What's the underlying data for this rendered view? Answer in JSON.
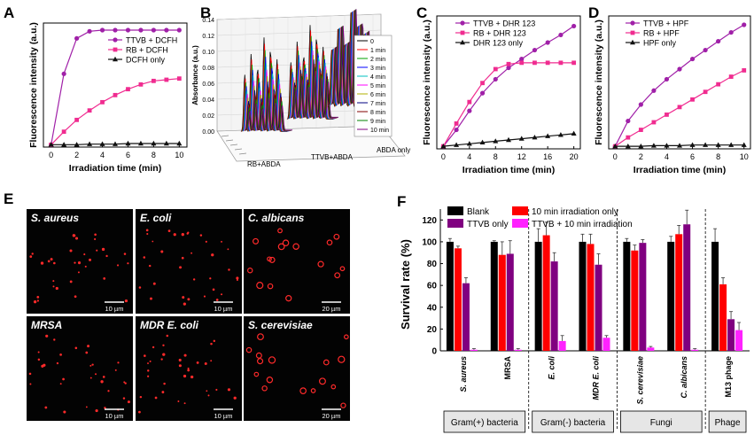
{
  "colors": {
    "purple": "#a020a8",
    "pink": "#f02c90",
    "black": "#111111",
    "magenta_bar": "#ff22ff",
    "red_bar": "#ff0000",
    "violet_bar": "#800080",
    "micro_bg": "#030303",
    "micro_dot": "#ff2a2a"
  },
  "panel_labels": {
    "A": "A",
    "B": "B",
    "C": "C",
    "D": "D",
    "E": "E",
    "F": "F"
  },
  "chart_data": [
    {
      "id": "A",
      "type": "line",
      "xlabel": "Irradiation time (min)",
      "ylabel": "Fluorescence intensity (a.u.)",
      "xlim": [
        -0.6,
        10.6
      ],
      "ylim": [
        0,
        1.05
      ],
      "xticks": [
        0,
        2,
        4,
        6,
        8,
        10
      ],
      "legend": "top-right",
      "series": [
        {
          "name": "TTVB + DCFH",
          "color": "#a020a8",
          "marker": "circle",
          "x": [
            0,
            1,
            2,
            3,
            4,
            5,
            6,
            7,
            8,
            9,
            10
          ],
          "y": [
            0.02,
            0.62,
            0.92,
            0.98,
            0.99,
            0.99,
            0.99,
            0.99,
            0.99,
            0.99,
            0.99
          ]
        },
        {
          "name": "RB + DCFH",
          "color": "#f02c90",
          "marker": "square",
          "x": [
            0,
            1,
            2,
            3,
            4,
            5,
            6,
            7,
            8,
            9,
            10
          ],
          "y": [
            0.02,
            0.13,
            0.23,
            0.31,
            0.38,
            0.44,
            0.49,
            0.53,
            0.56,
            0.57,
            0.58
          ]
        },
        {
          "name": "DCFH only",
          "color": "#111111",
          "marker": "triangle",
          "x": [
            0,
            1,
            2,
            3,
            4,
            5,
            6,
            7,
            8,
            9,
            10
          ],
          "y": [
            0.02,
            0.02,
            0.02,
            0.025,
            0.025,
            0.025,
            0.03,
            0.03,
            0.03,
            0.03,
            0.03
          ]
        }
      ]
    },
    {
      "id": "B",
      "type": "line",
      "ylabel": "Absorbance (a.u.)",
      "yticks": [
        "0.00",
        "0.02",
        "0.04",
        "0.06",
        "0.08",
        "0.10",
        "0.12",
        "0.14"
      ],
      "legend_entries": [
        "0",
        "1 min",
        "2 min",
        "3 min",
        "4 min",
        "5 min",
        "6 min",
        "7 min",
        "8 min",
        "9 min",
        "10 min"
      ],
      "series_colors": [
        "#000000",
        "#ff0000",
        "#00a000",
        "#0000ff",
        "#00c0c0",
        "#ff00ff",
        "#b0b000",
        "#000080",
        "#800000",
        "#008000",
        "#800080"
      ],
      "group_labels": [
        "RB+ABDA",
        "TTVB+ABDA",
        "ABDA only"
      ],
      "peak_decay_RB+ABDA": [
        1.0,
        0.93,
        0.86,
        0.79,
        0.72,
        0.65,
        0.58,
        0.52,
        0.46,
        0.4,
        0.34
      ],
      "peak_decay_TTVB+ABDA": [
        1.0,
        0.94,
        0.88,
        0.82,
        0.77,
        0.72,
        0.67,
        0.62,
        0.57,
        0.53,
        0.49
      ],
      "peak_decay_ABDA_only": [
        1.0,
        1.0,
        1.0,
        1.0,
        1.0,
        1.0,
        1.0,
        1.0,
        1.0,
        1.0,
        1.0
      ]
    },
    {
      "id": "C",
      "type": "line",
      "xlabel": "Irradiation time (min)",
      "ylabel": "Fluorescence intensity (a.u.)",
      "xlim": [
        -1.0,
        21.0
      ],
      "ylim": [
        0,
        1.05
      ],
      "xticks": [
        0,
        4,
        8,
        12,
        16,
        20
      ],
      "legend": "top-left",
      "series": [
        {
          "name": "TTVB + DHR 123",
          "color": "#a020a8",
          "marker": "circle",
          "x": [
            0,
            2,
            4,
            6,
            8,
            10,
            12,
            14,
            16,
            18,
            20
          ],
          "y": [
            0.02,
            0.15,
            0.3,
            0.44,
            0.55,
            0.64,
            0.71,
            0.78,
            0.84,
            0.9,
            0.97
          ]
        },
        {
          "name": "RB + DHR 123",
          "color": "#f02c90",
          "marker": "square",
          "x": [
            0,
            2,
            4,
            6,
            8,
            10,
            12,
            14,
            16,
            18,
            20
          ],
          "y": [
            0.02,
            0.2,
            0.37,
            0.52,
            0.63,
            0.67,
            0.68,
            0.68,
            0.68,
            0.68,
            0.68
          ]
        },
        {
          "name": "DHR 123 only",
          "color": "#111111",
          "marker": "triangle",
          "x": [
            0,
            2,
            4,
            6,
            8,
            10,
            12,
            14,
            16,
            18,
            20
          ],
          "y": [
            0.02,
            0.03,
            0.04,
            0.05,
            0.06,
            0.07,
            0.08,
            0.09,
            0.1,
            0.11,
            0.12
          ]
        }
      ]
    },
    {
      "id": "D",
      "type": "line",
      "xlabel": "Irradiation time (min)",
      "ylabel": "Fluorescence intensity (a.u.)",
      "xlim": [
        -0.5,
        10.5
      ],
      "ylim": [
        0,
        1.05
      ],
      "xticks": [
        0,
        2,
        4,
        6,
        8,
        10
      ],
      "legend": "top-left",
      "series": [
        {
          "name": "TTVB + HPF",
          "color": "#a020a8",
          "marker": "circle",
          "x": [
            0,
            1,
            2,
            3,
            4,
            5,
            6,
            7,
            8,
            9,
            10
          ],
          "y": [
            0.02,
            0.22,
            0.35,
            0.46,
            0.55,
            0.63,
            0.71,
            0.78,
            0.85,
            0.92,
            0.98
          ]
        },
        {
          "name": "RB + HPF",
          "color": "#f02c90",
          "marker": "square",
          "x": [
            0,
            1,
            2,
            3,
            4,
            5,
            6,
            7,
            8,
            9,
            10
          ],
          "y": [
            0.02,
            0.09,
            0.15,
            0.21,
            0.27,
            0.33,
            0.39,
            0.45,
            0.51,
            0.57,
            0.62
          ]
        },
        {
          "name": "HPF only",
          "color": "#111111",
          "marker": "triangle",
          "x": [
            0,
            1,
            2,
            3,
            4,
            5,
            6,
            7,
            8,
            9,
            10
          ],
          "y": [
            0.02,
            0.02,
            0.02,
            0.025,
            0.025,
            0.025,
            0.03,
            0.03,
            0.03,
            0.03,
            0.03
          ]
        }
      ]
    },
    {
      "id": "F",
      "type": "bar",
      "ylabel": "Survival rate (%)",
      "ylim": [
        0,
        130
      ],
      "yticks": [
        0,
        20,
        40,
        60,
        80,
        100,
        120
      ],
      "categories": [
        "S. aureus",
        "MRSA",
        "E. coli",
        "MDR E. coli",
        "S. cerevisiae",
        "C. albicans",
        "M13 phage"
      ],
      "italic_categories": [
        "S. aureus",
        "E. coli",
        "MDR E. coli",
        "S. cerevisiae",
        "C. albicans"
      ],
      "series": [
        {
          "name": "Blank",
          "color": "#000000",
          "values": [
            100,
            100,
            100,
            100,
            100,
            100,
            100
          ],
          "errors": [
            3,
            1,
            12,
            7,
            3,
            5,
            12
          ]
        },
        {
          "name": "10 min irradiation only",
          "color": "#ff0000",
          "values": [
            94,
            88,
            106,
            98,
            92,
            107,
            61
          ],
          "errors": [
            2,
            12,
            12,
            9,
            5,
            8,
            6
          ]
        },
        {
          "name": "TTVB only",
          "color": "#800080",
          "values": [
            62,
            89,
            82,
            79,
            99,
            116,
            29
          ],
          "errors": [
            5,
            12,
            8,
            10,
            3,
            13,
            7
          ]
        },
        {
          "name": "TTVB + 10 min irradiation",
          "color": "#ff22ff",
          "values": [
            1,
            1,
            9,
            12,
            3,
            1,
            19
          ],
          "errors": [
            1,
            1,
            5,
            2,
            1,
            1,
            7
          ]
        }
      ],
      "groups": [
        {
          "label": "Gram(+) bacteria",
          "categories": [
            0,
            1
          ]
        },
        {
          "label": "Gram(-) bacteria",
          "categories": [
            2,
            3
          ]
        },
        {
          "label": "Fungi",
          "categories": [
            4,
            5
          ]
        },
        {
          "label": "Phage",
          "categories": [
            6
          ]
        }
      ]
    }
  ],
  "panel_E": {
    "cells": [
      {
        "organism": "S. aureus",
        "scale": "10 µm",
        "italic": true
      },
      {
        "organism": "E. coli",
        "scale": "10 µm",
        "italic": true
      },
      {
        "organism": "C. albicans",
        "scale": "20 µm",
        "italic": true
      },
      {
        "organism": "MRSA",
        "scale": "10 µm",
        "italic": true
      },
      {
        "organism": "MDR E. coli",
        "scale": "10 µm",
        "italic": true
      },
      {
        "organism": "S. cerevisiae",
        "scale": "20 µm",
        "italic": true
      }
    ]
  }
}
